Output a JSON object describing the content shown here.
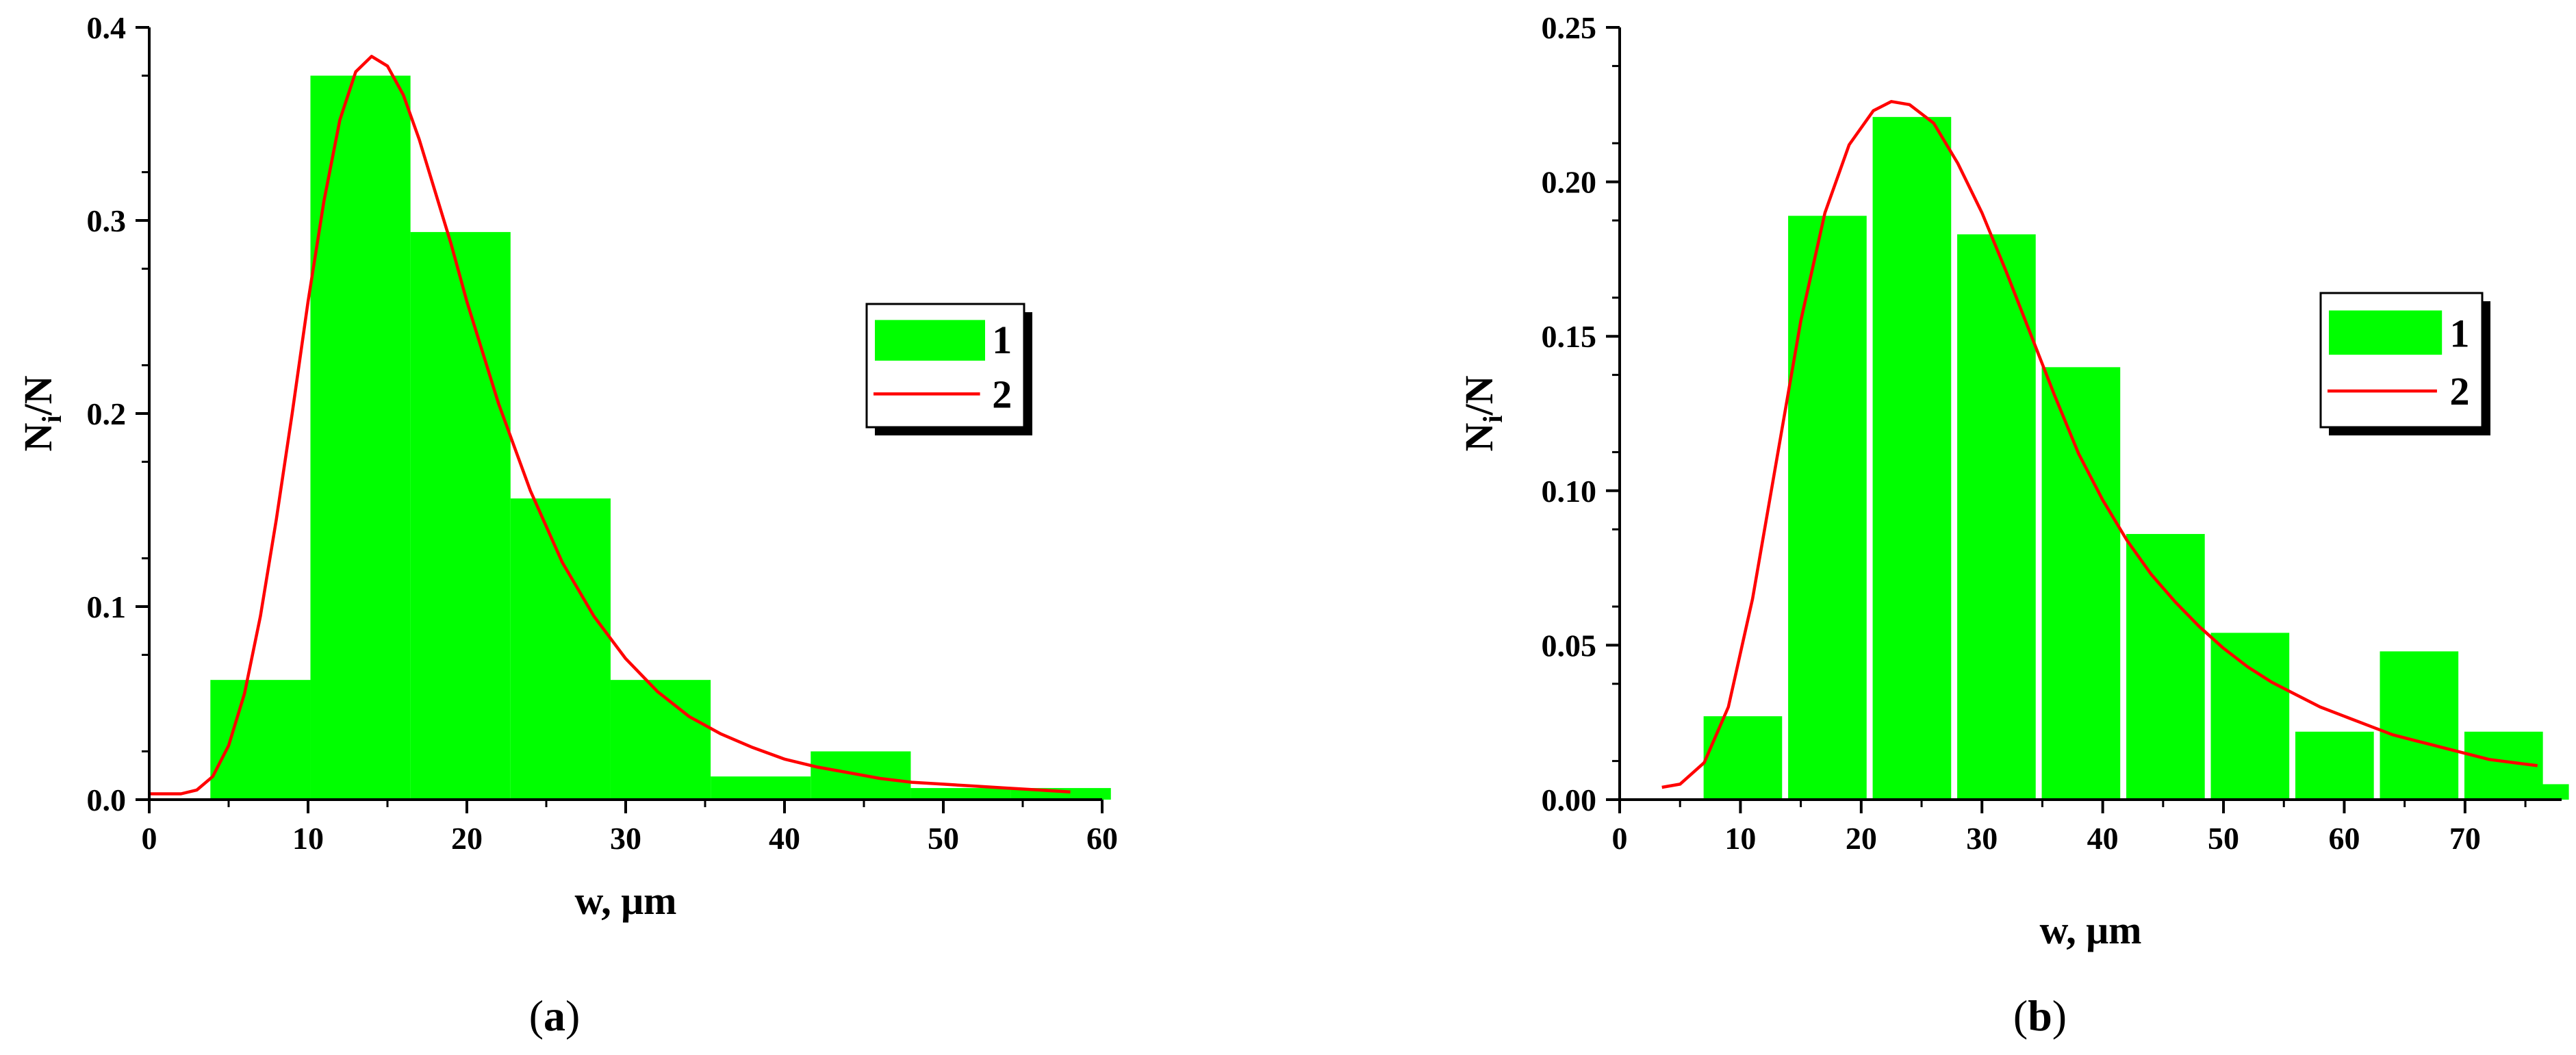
{
  "chart_data": [
    {
      "type": "bar",
      "panel_label": {
        "open": "(",
        "letter": "a",
        "close": ")"
      },
      "xlabel": "w, μm",
      "ylabel": {
        "main": "N",
        "sub": "i",
        "rest": "/N"
      },
      "xlim": [
        0,
        60
      ],
      "ylim": [
        0,
        0.4
      ],
      "xticks": [
        0,
        10,
        20,
        30,
        40,
        50,
        60
      ],
      "xtick_labels": [
        "0",
        "10",
        "20",
        "30",
        "40",
        "50",
        "60"
      ],
      "yticks": [
        0.0,
        0.1,
        0.2,
        0.3,
        0.4
      ],
      "ytick_labels": [
        "0.0",
        "0.1",
        "0.2",
        "0.3",
        "0.4"
      ],
      "grid": false,
      "legend_placement": "right",
      "series": [
        {
          "name": "1",
          "kind": "bar",
          "color": "#00ff00",
          "bin_width": 6.3,
          "x": [
            7.0,
            13.3,
            19.6,
            25.9,
            32.2,
            38.5,
            44.8,
            51.1,
            57.4
          ],
          "values": [
            0.062,
            0.375,
            0.294,
            0.156,
            0.062,
            0.012,
            0.025,
            0.006,
            0.006
          ]
        },
        {
          "name": "2",
          "kind": "line",
          "color": "#ff0000",
          "x": [
            0,
            2,
            3,
            4,
            5,
            6,
            7,
            8,
            9,
            10,
            11,
            12,
            13,
            14,
            15,
            16,
            17,
            18,
            19,
            20,
            22,
            24,
            26,
            28,
            30,
            32,
            34,
            36,
            38,
            40,
            42,
            44,
            46,
            48,
            50,
            52,
            54,
            56,
            58
          ],
          "values": [
            0.003,
            0.003,
            0.005,
            0.012,
            0.028,
            0.055,
            0.095,
            0.145,
            0.2,
            0.258,
            0.31,
            0.352,
            0.377,
            0.385,
            0.38,
            0.365,
            0.342,
            0.315,
            0.288,
            0.258,
            0.205,
            0.16,
            0.123,
            0.095,
            0.073,
            0.056,
            0.043,
            0.034,
            0.027,
            0.021,
            0.017,
            0.014,
            0.011,
            0.009,
            0.008,
            0.007,
            0.006,
            0.005,
            0.004
          ]
        }
      ]
    },
    {
      "type": "bar",
      "panel_label": {
        "open": "(",
        "letter": "b",
        "close": ")"
      },
      "xlabel": "w, μm",
      "ylabel": {
        "main": "N",
        "sub": "i",
        "rest": "/N"
      },
      "xlim": [
        0,
        78
      ],
      "ylim": [
        0,
        0.25
      ],
      "xticks": [
        0,
        10,
        20,
        30,
        40,
        50,
        60,
        70
      ],
      "xtick_labels": [
        "0",
        "10",
        "20",
        "30",
        "40",
        "50",
        "60",
        "70"
      ],
      "yticks": [
        0.0,
        0.05,
        0.1,
        0.15,
        0.2,
        0.25
      ],
      "ytick_labels": [
        "0.00",
        "0.05",
        "0.10",
        "0.15",
        "0.20",
        "0.25"
      ],
      "grid": false,
      "legend_placement": "right",
      "series": [
        {
          "name": "1",
          "kind": "bar",
          "color": "#00ff00",
          "bin_width": 6.5,
          "x": [
            10.2,
            17.2,
            24.2,
            31.2,
            38.2,
            45.2,
            52.2,
            59.2,
            66.2,
            73.2,
            77.4
          ],
          "values": [
            0.027,
            0.189,
            0.221,
            0.183,
            0.14,
            0.086,
            0.054,
            0.022,
            0.048,
            0.022,
            0.005
          ],
          "last_bar_width": 2.4
        },
        {
          "name": "2",
          "kind": "line",
          "color": "#ff0000",
          "x": [
            3.5,
            5,
            7,
            9,
            11,
            13,
            15,
            17,
            19,
            21,
            22.5,
            24,
            26,
            28,
            30,
            32,
            34,
            36,
            38,
            40,
            42,
            44,
            46,
            48,
            50,
            52,
            54,
            56,
            58,
            60,
            62,
            64,
            66,
            68,
            70,
            72,
            74,
            76
          ],
          "values": [
            0.004,
            0.005,
            0.012,
            0.03,
            0.065,
            0.11,
            0.155,
            0.19,
            0.212,
            0.223,
            0.226,
            0.225,
            0.219,
            0.206,
            0.19,
            0.171,
            0.151,
            0.131,
            0.112,
            0.097,
            0.084,
            0.073,
            0.064,
            0.056,
            0.049,
            0.043,
            0.038,
            0.034,
            0.03,
            0.027,
            0.024,
            0.021,
            0.019,
            0.017,
            0.015,
            0.013,
            0.012,
            0.011
          ]
        }
      ]
    }
  ]
}
